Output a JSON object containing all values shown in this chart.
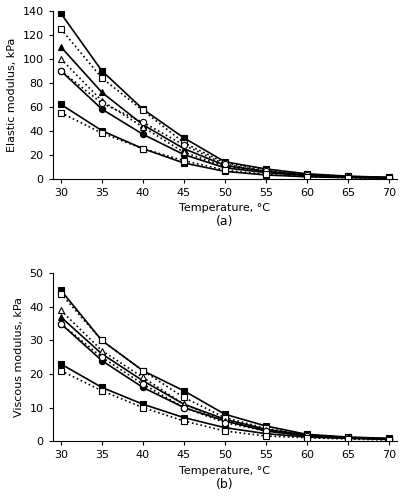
{
  "temperature": [
    30,
    35,
    40,
    45,
    50,
    55,
    60,
    65,
    70
  ],
  "elastic": {
    "s1": [
      138,
      90,
      58,
      34,
      14,
      8,
      4,
      2,
      1
    ],
    "s2": [
      110,
      72,
      45,
      25,
      11,
      6,
      3,
      1.5,
      0.8
    ],
    "s3": [
      90,
      58,
      37,
      20,
      9,
      5,
      2.5,
      1.2,
      0.6
    ],
    "s4": [
      62,
      40,
      25,
      13,
      6,
      3,
      1.5,
      0.8,
      0.3
    ],
    "d1": [
      125,
      84,
      57,
      30,
      13,
      7,
      3.5,
      1.8,
      0.9
    ],
    "d2": [
      100,
      65,
      43,
      22,
      10,
      5.5,
      2.5,
      1.2,
      0.6
    ],
    "d3": [
      90,
      63,
      47,
      28,
      12,
      6,
      3,
      1.5,
      0.7
    ],
    "d4": [
      55,
      38,
      25,
      15,
      7,
      3.5,
      1.5,
      0.7,
      0.3
    ]
  },
  "viscous": {
    "s1": [
      45,
      30,
      21,
      15,
      8,
      4.5,
      2,
      1.2,
      0.8
    ],
    "s2": [
      37,
      26,
      18,
      11,
      6.5,
      3.5,
      1.8,
      1.0,
      0.7
    ],
    "s3": [
      35,
      24,
      16,
      10,
      6,
      3,
      1.5,
      1.0,
      0.6
    ],
    "s4": [
      23,
      16,
      11,
      7,
      4,
      2.2,
      1.2,
      0.8,
      0.5
    ],
    "d1": [
      44,
      30,
      21,
      13,
      7,
      3.8,
      1.8,
      1.1,
      0.7
    ],
    "d2": [
      39,
      27,
      19,
      11,
      6,
      3.2,
      1.6,
      1.0,
      0.6
    ],
    "d3": [
      35,
      25,
      17,
      10,
      5.5,
      3,
      1.5,
      0.9,
      0.6
    ],
    "d4": [
      21,
      15,
      10,
      6,
      3,
      1.5,
      1.0,
      0.6,
      0.3
    ]
  },
  "xlabel": "Temperature, °C",
  "ylabel_a": "Elastic modulus, kPa",
  "ylabel_b": "Viscous modulus, kPa",
  "label_a": "(a)",
  "label_b": "(b)",
  "ylim_a": [
    0,
    140
  ],
  "ylim_b": [
    0,
    50
  ],
  "xticks": [
    30,
    35,
    40,
    45,
    50,
    55,
    60,
    65,
    70
  ]
}
